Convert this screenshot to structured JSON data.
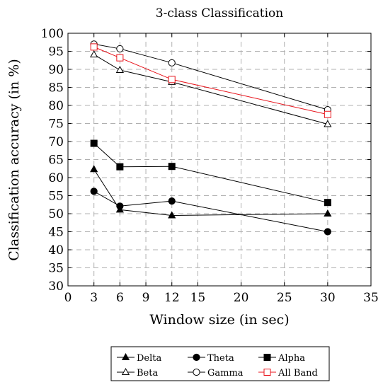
{
  "chart_data": {
    "type": "line",
    "title": "3-class Classification",
    "xlabel": "Window size (in sec)",
    "ylabel": "Classification accuracy (in %)",
    "xlim": [
      0,
      35
    ],
    "ylim": [
      30,
      100
    ],
    "xticks": [
      0,
      3,
      6,
      9,
      12,
      15,
      20,
      25,
      30,
      35
    ],
    "yticks": [
      30,
      35,
      40,
      45,
      50,
      55,
      60,
      65,
      70,
      75,
      80,
      85,
      90,
      95,
      100
    ],
    "grid": true,
    "legend_position": "bottom",
    "x": [
      3,
      6,
      12,
      30
    ],
    "series": [
      {
        "name": "Delta",
        "values": [
          62.3,
          51.1,
          49.5,
          50.0
        ],
        "marker": "triangle-filled",
        "color": "#000000"
      },
      {
        "name": "Theta",
        "values": [
          56.2,
          52.1,
          53.5,
          45.0
        ],
        "marker": "circle-filled",
        "color": "#000000"
      },
      {
        "name": "Alpha",
        "values": [
          69.5,
          63.0,
          63.1,
          53.1
        ],
        "marker": "square-filled",
        "color": "#000000"
      },
      {
        "name": "Beta",
        "values": [
          94.1,
          89.8,
          86.5,
          74.8
        ],
        "marker": "triangle-open",
        "color": "#000000"
      },
      {
        "name": "Gamma",
        "values": [
          97.0,
          95.7,
          91.8,
          78.8
        ],
        "marker": "circle-open",
        "color": "#000000"
      },
      {
        "name": "All Band",
        "values": [
          96.2,
          93.2,
          87.2,
          77.5
        ],
        "marker": "square-open",
        "color": "#e8141c"
      }
    ]
  }
}
